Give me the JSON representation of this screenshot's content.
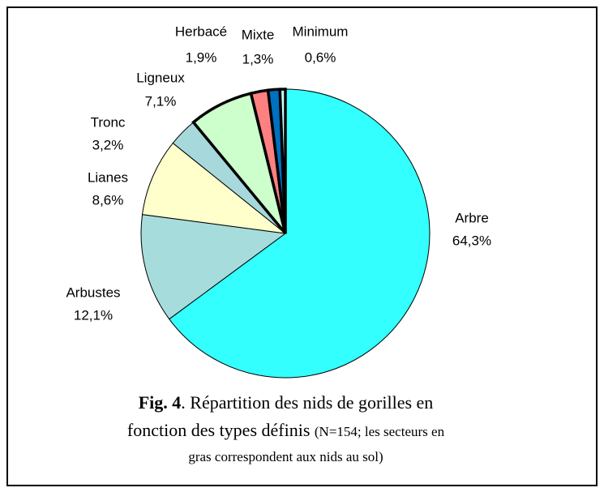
{
  "chart_data": {
    "type": "pie",
    "categories": [
      "Arbre",
      "Arbustes",
      "Lianes",
      "Tronc",
      "Ligneux",
      "Herbacé",
      "Mixte",
      "Minimum"
    ],
    "values": [
      64.3,
      12.1,
      8.6,
      3.2,
      7.1,
      1.9,
      1.3,
      0.6
    ],
    "value_labels": [
      "64,3%",
      "12,1%",
      "8,6%",
      "3,2%",
      "7,1%",
      "1,9%",
      "1,3%",
      "0,6%"
    ],
    "colors": [
      "#33ffff",
      "#a6dcdc",
      "#ffffcc",
      "#a6d8dc",
      "#ccffcc",
      "#ff8080",
      "#0070c0",
      "#ccffff"
    ],
    "bold_outline": [
      false,
      false,
      false,
      false,
      true,
      true,
      true,
      true
    ]
  },
  "caption": {
    "label": "Fig. 4",
    "line1": ". Répartition des nids de gorilles en",
    "line2": "fonction des types définis",
    "note1": "(N=154; les secteurs en",
    "note2": "gras correspondent aux nids au sol)"
  }
}
